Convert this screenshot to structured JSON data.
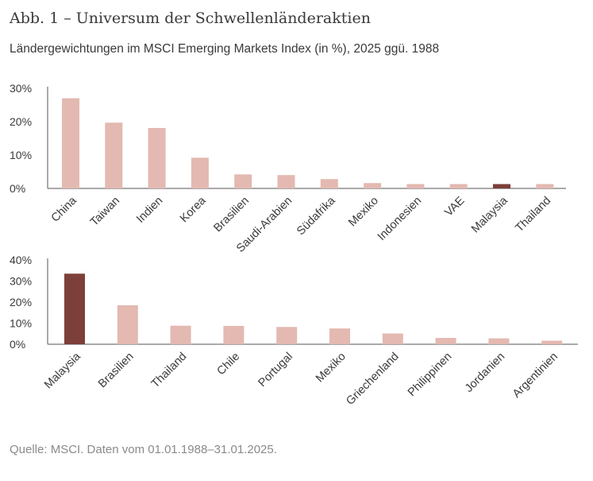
{
  "title": "Abb. 1 – Universum der Schwellenländeraktien",
  "subtitle": "Ländergewichtungen im MSCI Emerging Markets Index (in %), 2025 ggü. 1988",
  "source": "Quelle: MSCI. Daten vom 01.01.1988–31.01.2025.",
  "colors": {
    "bar": "#e3b9b1",
    "highlight": "#7d3f39",
    "axis": "#555555"
  },
  "chart_data": [
    {
      "type": "bar",
      "title": "",
      "xlabel": "",
      "ylabel": "",
      "ylim": [
        0,
        30
      ],
      "yticks": [
        0,
        10,
        20,
        30
      ],
      "ytick_labels": [
        "0%",
        "10%",
        "20%",
        "30%"
      ],
      "categories": [
        "China",
        "Taiwan",
        "Indien",
        "Korea",
        "Brasilien",
        "Saudi-Arabien",
        "Südafrika",
        "Mexiko",
        "Indonesien",
        "VAE",
        "Malaysia",
        "Thailand"
      ],
      "values": [
        27.0,
        19.7,
        18.1,
        9.2,
        4.2,
        4.0,
        2.8,
        1.6,
        1.3,
        1.3,
        1.3,
        1.3
      ],
      "highlight": "Malaysia",
      "grid": false
    },
    {
      "type": "bar",
      "title": "",
      "xlabel": "",
      "ylabel": "",
      "ylim": [
        0,
        40
      ],
      "yticks": [
        0,
        10,
        20,
        30,
        40
      ],
      "ytick_labels": [
        "0%",
        "10%",
        "20%",
        "30%",
        "40%"
      ],
      "categories": [
        "Malaysia",
        "Brasilien",
        "Thailand",
        "Chile",
        "Portugal",
        "Mexiko",
        "Griechenland",
        "Philippinen",
        "Jordanien",
        "Argentinien"
      ],
      "values": [
        33.5,
        18.5,
        8.8,
        8.7,
        8.2,
        7.5,
        5.1,
        3.0,
        2.8,
        1.7
      ],
      "highlight": "Malaysia",
      "grid": false
    }
  ]
}
